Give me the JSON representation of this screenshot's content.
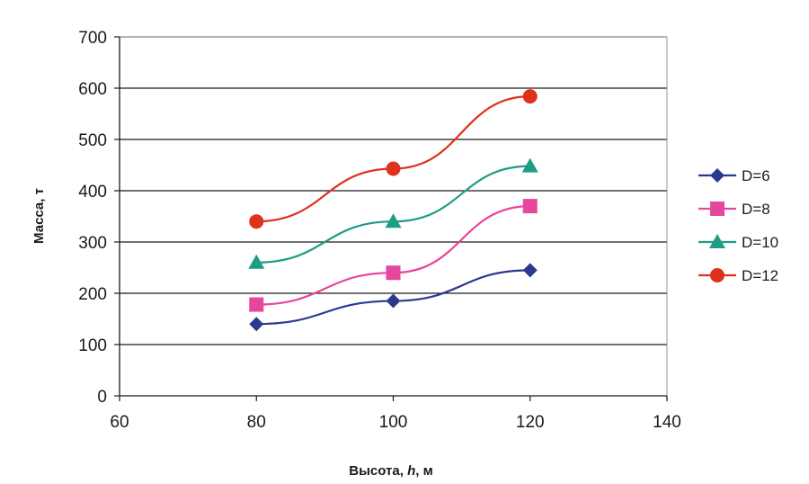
{
  "chart_data": {
    "type": "line",
    "title": "",
    "xlabel": {
      "prefix": "Высота, ",
      "var": "h",
      "suffix": ", м"
    },
    "ylabel": "Масса, т",
    "xlim": [
      60,
      140
    ],
    "ylim": [
      0,
      700
    ],
    "xticks": [
      60,
      80,
      100,
      120,
      140
    ],
    "yticks": [
      0,
      100,
      200,
      300,
      400,
      500,
      600,
      700
    ],
    "grid": "horizontal",
    "legend_position": "right",
    "x": [
      80,
      100,
      120
    ],
    "series": [
      {
        "name": "D=6",
        "values": [
          140,
          185,
          245
        ],
        "color": "#2b3990",
        "marker": "diamond"
      },
      {
        "name": "D=8",
        "values": [
          178,
          240,
          370
        ],
        "color": "#e6469b",
        "marker": "square"
      },
      {
        "name": "D=10",
        "values": [
          260,
          340,
          448
        ],
        "color": "#1f9c86",
        "marker": "triangle"
      },
      {
        "name": "D=12",
        "values": [
          340,
          443,
          584
        ],
        "color": "#e0301e",
        "marker": "circle"
      }
    ]
  }
}
